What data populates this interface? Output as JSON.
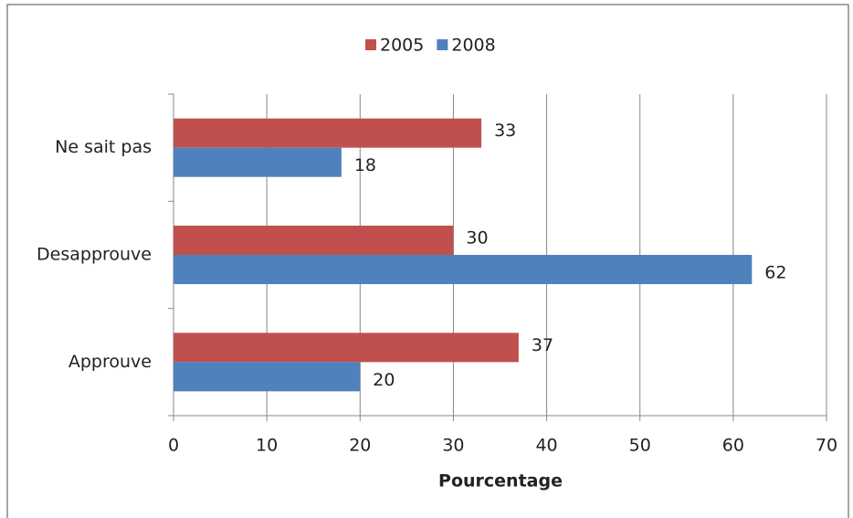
{
  "chart_data": {
    "type": "bar",
    "orientation": "horizontal",
    "categories": [
      "Ne sait pas",
      "Desapprouve",
      "Approuve"
    ],
    "series": [
      {
        "name": "2005",
        "color": "#c0504d",
        "values": [
          33,
          30,
          37
        ]
      },
      {
        "name": "2008",
        "color": "#4f81bd",
        "values": [
          18,
          62,
          20
        ]
      }
    ],
    "x_label": "Pourcentage",
    "xlim": [
      0,
      70
    ],
    "xticks": [
      0,
      10,
      20,
      30,
      40,
      50,
      60,
      70
    ],
    "grid": true,
    "legend": "top"
  }
}
